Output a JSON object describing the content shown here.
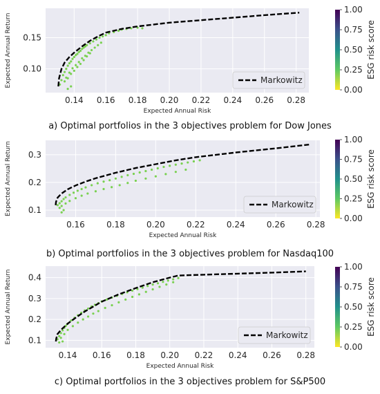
{
  "chart_data": [
    {
      "type": "scatter",
      "xlabel": "Expected Annual Risk",
      "ylabel": "Expected Annual Return",
      "xlim": [
        0.122,
        0.288
      ],
      "ylim": [
        0.062,
        0.197
      ],
      "xticks": [
        0.14,
        0.16,
        0.18,
        0.2,
        0.22,
        0.24,
        0.26,
        0.28
      ],
      "yticks": [
        0.1,
        0.15
      ],
      "grid": true,
      "legend": {
        "position": "bottom-right",
        "entries": [
          "Markowitz"
        ]
      },
      "colorbar": {
        "label": "ESG risk score",
        "range": [
          0.0,
          1.0
        ],
        "ticks": [
          "0.00",
          "0.25",
          "0.50",
          "0.75",
          "1.00"
        ]
      },
      "point_color": "#7ad151",
      "series": [
        {
          "name": "Markowitz",
          "style": "dashed",
          "x": [
            0.13,
            0.1305,
            0.132,
            0.134,
            0.137,
            0.14,
            0.145,
            0.15,
            0.155,
            0.16,
            0.17,
            0.18,
            0.2,
            0.22,
            0.24,
            0.26,
            0.282
          ],
          "y": [
            0.072,
            0.085,
            0.1,
            0.11,
            0.119,
            0.126,
            0.136,
            0.145,
            0.152,
            0.158,
            0.164,
            0.168,
            0.174,
            0.178,
            0.182,
            0.186,
            0.19
          ]
        },
        {
          "x": [
            0.131,
            0.132,
            0.133,
            0.134,
            0.135,
            0.136,
            0.137,
            0.138,
            0.139,
            0.14,
            0.141,
            0.142,
            0.143,
            0.144,
            0.145,
            0.146,
            0.147,
            0.148,
            0.15,
            0.152,
            0.154,
            0.156,
            0.158,
            0.16,
            0.162,
            0.165,
            0.168,
            0.17,
            0.173,
            0.176,
            0.18,
            0.183,
            0.134,
            0.135,
            0.137,
            0.139,
            0.141,
            0.143,
            0.145,
            0.147,
            0.149,
            0.151,
            0.153,
            0.155,
            0.157,
            0.136,
            0.138,
            0.14,
            0.142,
            0.144,
            0.146,
            0.148,
            0.15,
            0.136,
            0.138
          ],
          "y": [
            0.075,
            0.082,
            0.09,
            0.095,
            0.1,
            0.105,
            0.109,
            0.112,
            0.116,
            0.119,
            0.122,
            0.124,
            0.127,
            0.129,
            0.132,
            0.134,
            0.136,
            0.138,
            0.141,
            0.144,
            0.147,
            0.15,
            0.152,
            0.154,
            0.157,
            0.159,
            0.161,
            0.163,
            0.164,
            0.165,
            0.166,
            0.165,
            0.08,
            0.086,
            0.094,
            0.101,
            0.106,
            0.111,
            0.117,
            0.121,
            0.126,
            0.13,
            0.134,
            0.138,
            0.142,
            0.085,
            0.092,
            0.097,
            0.103,
            0.108,
            0.114,
            0.12,
            0.125,
            0.068,
            0.072
          ]
        }
      ]
    },
    {
      "type": "scatter",
      "xlabel": "Expected Annual Risk",
      "ylabel": "Expected Annual Return",
      "xlim": [
        0.145,
        0.282
      ],
      "ylim": [
        0.075,
        0.352
      ],
      "xticks": [
        0.16,
        0.18,
        0.2,
        0.22,
        0.24,
        0.26,
        0.28
      ],
      "yticks": [
        0.1,
        0.2,
        0.3
      ],
      "grid": true,
      "legend": {
        "position": "bottom-right",
        "entries": [
          "Markowitz"
        ]
      },
      "colorbar": {
        "label": "ESG risk score",
        "range": [
          0.0,
          1.0
        ],
        "ticks": [
          "0.00",
          "0.25",
          "0.50",
          "0.75",
          "1.00"
        ]
      },
      "point_color": "#7ad151",
      "series": [
        {
          "name": "Markowitz",
          "style": "dashed",
          "x": [
            0.15,
            0.1502,
            0.151,
            0.153,
            0.156,
            0.16,
            0.165,
            0.17,
            0.18,
            0.19,
            0.2,
            0.21,
            0.22,
            0.24,
            0.26,
            0.277
          ],
          "y": [
            0.118,
            0.13,
            0.145,
            0.16,
            0.175,
            0.189,
            0.203,
            0.215,
            0.235,
            0.252,
            0.266,
            0.28,
            0.291,
            0.308,
            0.323,
            0.337
          ]
        },
        {
          "x": [
            0.151,
            0.152,
            0.153,
            0.154,
            0.155,
            0.157,
            0.159,
            0.161,
            0.163,
            0.165,
            0.168,
            0.171,
            0.174,
            0.177,
            0.18,
            0.183,
            0.186,
            0.189,
            0.192,
            0.195,
            0.198,
            0.201,
            0.204,
            0.207,
            0.21,
            0.213,
            0.216,
            0.219,
            0.222,
            0.152,
            0.153,
            0.155,
            0.157,
            0.16,
            0.163,
            0.166,
            0.17,
            0.174,
            0.178,
            0.182,
            0.186,
            0.19,
            0.195,
            0.2,
            0.205,
            0.21,
            0.215,
            0.154,
            0.153
          ],
          "y": [
            0.118,
            0.125,
            0.132,
            0.14,
            0.146,
            0.155,
            0.163,
            0.17,
            0.176,
            0.182,
            0.19,
            0.197,
            0.203,
            0.208,
            0.214,
            0.22,
            0.226,
            0.231,
            0.236,
            0.241,
            0.246,
            0.251,
            0.256,
            0.26,
            0.264,
            0.268,
            0.272,
            0.276,
            0.28,
            0.108,
            0.115,
            0.124,
            0.133,
            0.143,
            0.152,
            0.16,
            0.168,
            0.176,
            0.183,
            0.19,
            0.198,
            0.206,
            0.214,
            0.222,
            0.23,
            0.238,
            0.246,
            0.1,
            0.092
          ]
        }
      ]
    },
    {
      "type": "scatter",
      "xlabel": "Expected Annual Risk",
      "ylabel": "Expected Annual Return",
      "xlim": [
        0.127,
        0.285
      ],
      "ylim": [
        0.065,
        0.455
      ],
      "xticks": [
        0.14,
        0.16,
        0.18,
        0.2,
        0.22,
        0.24,
        0.26,
        0.28
      ],
      "yticks": [
        0.1,
        0.2,
        0.3,
        0.4
      ],
      "grid": true,
      "legend": {
        "position": "bottom-right",
        "entries": [
          "Markowitz"
        ]
      },
      "colorbar": {
        "label": "ESG risk score",
        "range": [
          0.0,
          1.0
        ],
        "ticks": [
          "0.00",
          "0.25",
          "0.50",
          "0.75",
          "1.00"
        ]
      },
      "point_color": "#7ad151",
      "series": [
        {
          "name": "Markowitz",
          "style": "dashed",
          "x": [
            0.133,
            0.1333,
            0.134,
            0.136,
            0.14,
            0.145,
            0.15,
            0.16,
            0.17,
            0.18,
            0.19,
            0.2,
            0.205,
            0.22,
            0.24,
            0.26,
            0.28
          ],
          "y": [
            0.095,
            0.11,
            0.13,
            0.15,
            0.18,
            0.21,
            0.238,
            0.285,
            0.32,
            0.35,
            0.378,
            0.4,
            0.41,
            0.414,
            0.419,
            0.424,
            0.43
          ]
        },
        {
          "x": [
            0.134,
            0.135,
            0.136,
            0.137,
            0.138,
            0.139,
            0.14,
            0.142,
            0.144,
            0.146,
            0.148,
            0.15,
            0.152,
            0.154,
            0.156,
            0.158,
            0.16,
            0.163,
            0.166,
            0.169,
            0.172,
            0.175,
            0.178,
            0.181,
            0.184,
            0.187,
            0.19,
            0.193,
            0.196,
            0.199,
            0.202,
            0.205,
            0.136,
            0.138,
            0.14,
            0.143,
            0.146,
            0.149,
            0.152,
            0.155,
            0.158,
            0.162,
            0.166,
            0.17,
            0.174,
            0.178,
            0.182,
            0.186,
            0.19,
            0.194,
            0.198,
            0.202,
            0.135,
            0.137
          ],
          "y": [
            0.105,
            0.12,
            0.135,
            0.148,
            0.16,
            0.17,
            0.18,
            0.195,
            0.208,
            0.22,
            0.232,
            0.243,
            0.252,
            0.262,
            0.27,
            0.278,
            0.286,
            0.295,
            0.305,
            0.313,
            0.322,
            0.33,
            0.338,
            0.345,
            0.352,
            0.36,
            0.367,
            0.373,
            0.38,
            0.386,
            0.392,
            0.398,
            0.112,
            0.13,
            0.15,
            0.168,
            0.185,
            0.2,
            0.214,
            0.228,
            0.24,
            0.255,
            0.268,
            0.282,
            0.295,
            0.308,
            0.32,
            0.332,
            0.344,
            0.356,
            0.367,
            0.378,
            0.09,
            0.095
          ]
        }
      ]
    }
  ],
  "captions": [
    "a) Optimal portfolios in the 3 objectives problem for Dow Jones",
    "b) Optimal portfolios in the 3 objectives problem for Nasdaq100",
    "c) Optimal portfolios in the 3 objectives problem for S&P500"
  ]
}
